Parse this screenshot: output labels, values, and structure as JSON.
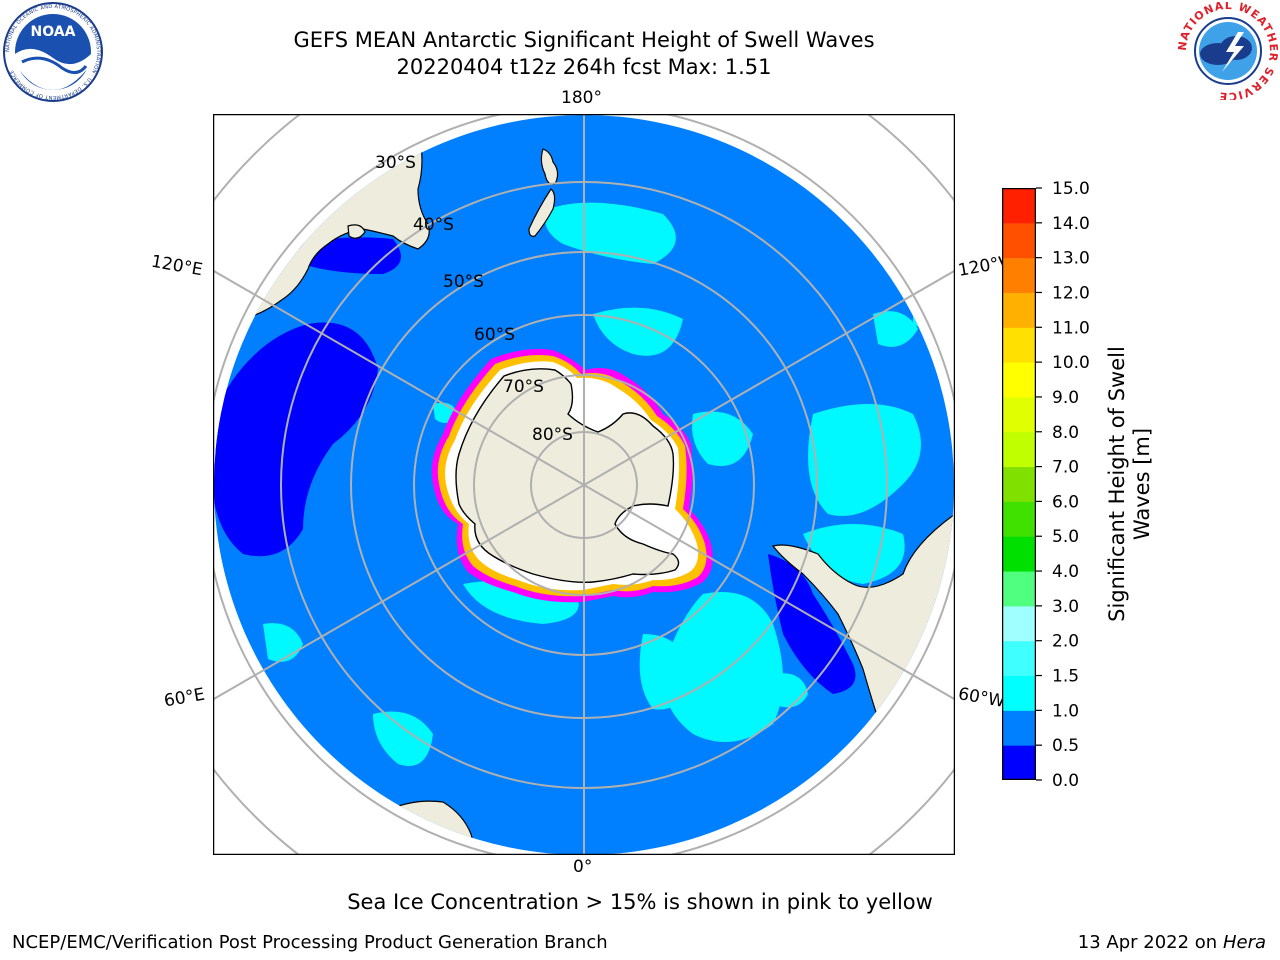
{
  "title": {
    "line1": "GEFS MEAN Antarctic Significant Height of Swell Waves",
    "line2": "20220404 t12z 264h fcst   Max: 1.51"
  },
  "map": {
    "projection": "south-polar-stereographic",
    "longitude_labels": {
      "top": "180°",
      "bottom": "0°",
      "upper_left": "120°E",
      "lower_left": "60°E",
      "upper_right": "120°W",
      "lower_right": "60°W"
    },
    "latitude_labels": [
      "30°S",
      "40°S",
      "50°S",
      "60°S",
      "70°S",
      "80°S"
    ],
    "colors": {
      "land": "#eeecdc",
      "ocean_0_5": "#0000ff",
      "ocean_0_5_1": "#0080ff",
      "ocean_1_1_5": "#00ffff",
      "ice_edge_pink": "#ff00ff",
      "ice_yellow": "#ffc000",
      "ice_white": "#ffffff",
      "grid": "#b0b0b0"
    }
  },
  "colorbar": {
    "label": "Significant Height of Swell Waves [m]",
    "label_line1": "Significant Height of Swell",
    "label_line2": "Waves [m]",
    "ticks": [
      "0.0",
      "0.5",
      "1.0",
      "1.5",
      "2.0",
      "3.0",
      "4.0",
      "5.0",
      "6.0",
      "7.0",
      "8.0",
      "9.0",
      "10.0",
      "11.0",
      "12.0",
      "13.0",
      "14.0",
      "15.0"
    ],
    "colors": [
      "#0000ff",
      "#0080ff",
      "#00ffff",
      "#40ffff",
      "#a0ffff",
      "#50ff80",
      "#00e000",
      "#40e000",
      "#80e000",
      "#c0ff00",
      "#e0ff00",
      "#ffff00",
      "#ffe000",
      "#ffb000",
      "#ff8000",
      "#ff5000",
      "#ff2000"
    ]
  },
  "caption": "Sea Ice Concentration > 15% is shown in pink to yellow",
  "footer": {
    "left": "NCEP/EMC/Verification Post Processing Product Generation Branch",
    "right_date": "13 Apr 2022 on ",
    "right_host": "Hera"
  },
  "logos": {
    "noaa": "NOAA",
    "noaa_ring": "NATIONAL OCEANIC AND ATMOSPHERIC ADMINISTRATION · U.S. DEPARTMENT OF COMMERCE",
    "nws_ring": "NATIONAL WEATHER SERVICE"
  }
}
